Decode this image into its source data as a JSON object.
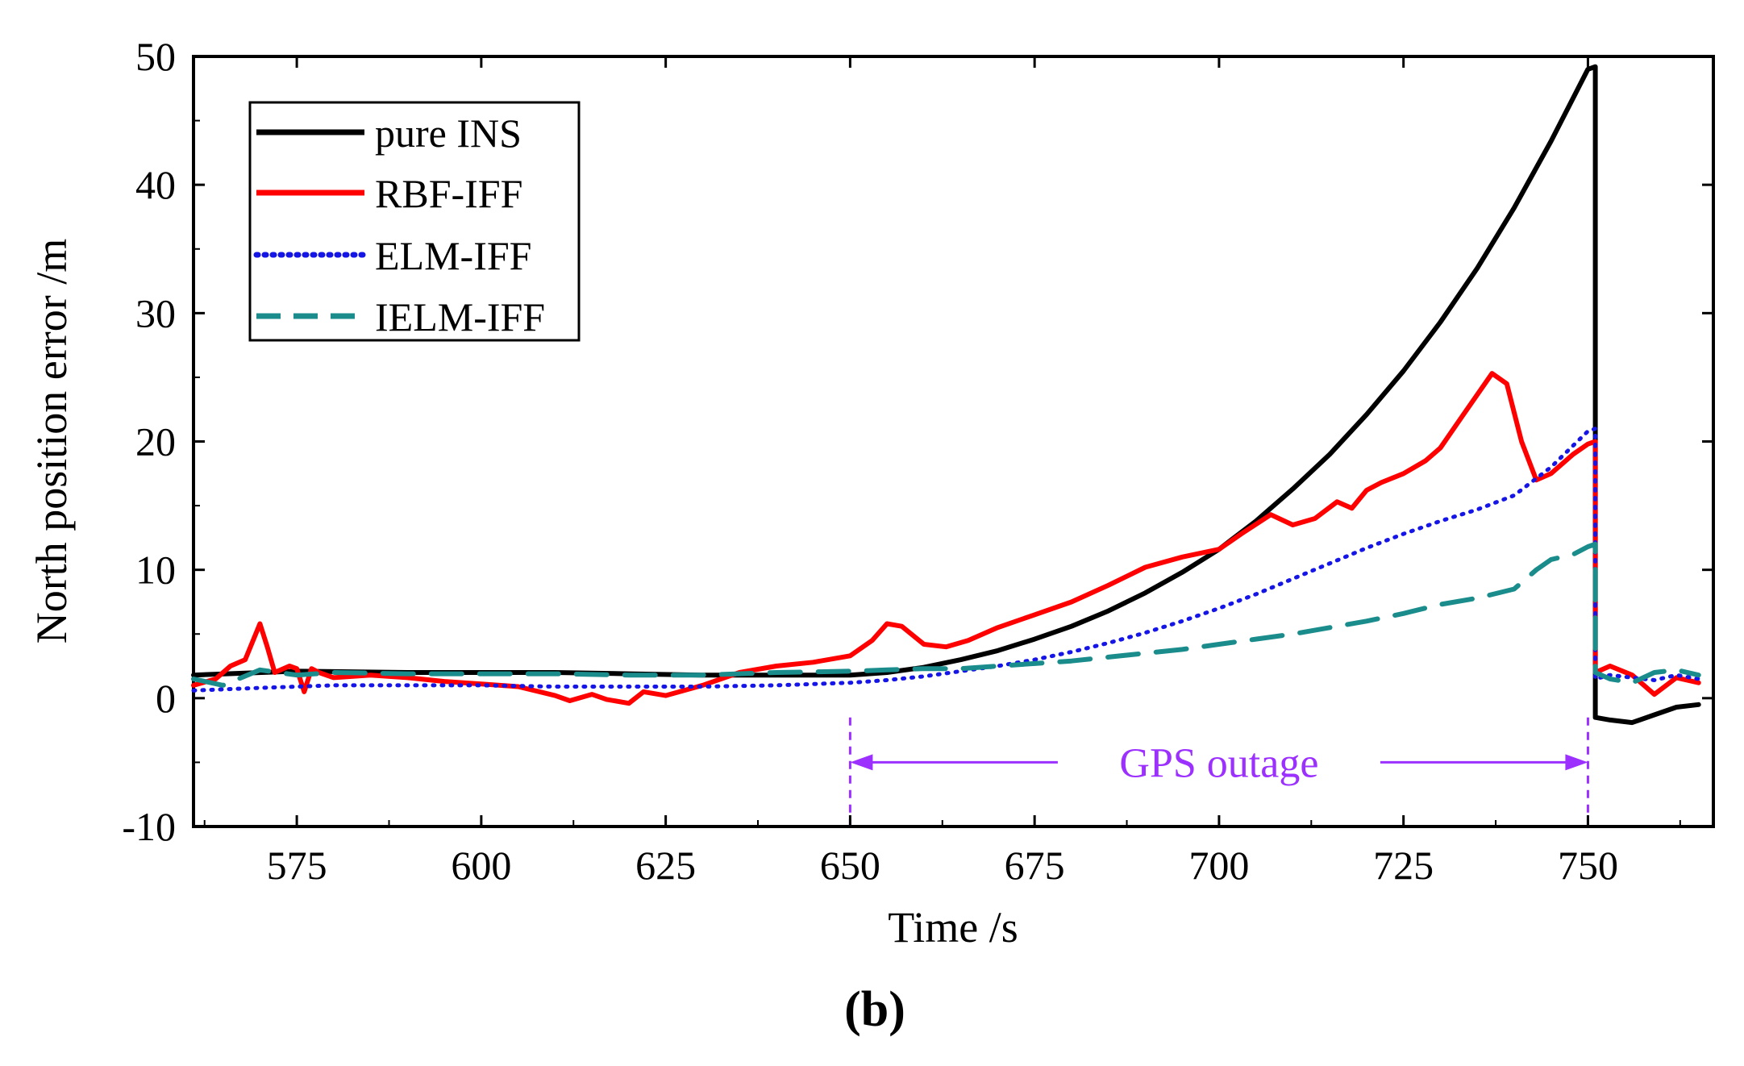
{
  "chart_data": {
    "type": "line",
    "title": "",
    "xlabel": "Time /s",
    "ylabel": "North position error /m",
    "panel_label": "(b)",
    "xlim": [
      561,
      767
    ],
    "ylim": [
      -10,
      50
    ],
    "x_ticks": [
      575,
      600,
      625,
      650,
      675,
      700,
      725,
      750
    ],
    "y_ticks": [
      -10,
      0,
      10,
      20,
      30,
      40,
      50
    ],
    "grid": false,
    "legend_position": "top-left",
    "annotation": {
      "text": "GPS outage",
      "x_start": 650,
      "x_end": 750,
      "y": -5,
      "color": "#9B30FF"
    },
    "series": [
      {
        "name": "pure INS",
        "color": "#000000",
        "style": "solid",
        "x": [
          561,
          575,
          590,
          600,
          610,
          620,
          630,
          640,
          650,
          655,
          660,
          665,
          670,
          675,
          680,
          685,
          690,
          695,
          700,
          705,
          710,
          715,
          720,
          725,
          730,
          735,
          740,
          745,
          750,
          751,
          751,
          753,
          756,
          759,
          762,
          765
        ],
        "y": [
          1.8,
          2.1,
          2.0,
          2.0,
          2.0,
          1.9,
          1.8,
          1.8,
          1.8,
          2.0,
          2.4,
          3.0,
          3.7,
          4.6,
          5.6,
          6.8,
          8.2,
          9.8,
          11.6,
          13.8,
          16.3,
          19.0,
          22.1,
          25.5,
          29.3,
          33.5,
          38.2,
          43.4,
          49.0,
          49.2,
          -1.5,
          -1.7,
          -1.9,
          -1.3,
          -0.7,
          -0.5
        ]
      },
      {
        "name": "RBF-IFF",
        "color": "#FF0000",
        "style": "solid",
        "x": [
          561,
          564,
          566,
          568,
          570,
          571,
          572,
          574,
          575,
          576,
          577,
          578,
          580,
          585,
          590,
          595,
          600,
          605,
          610,
          612,
          615,
          617,
          620,
          622,
          625,
          630,
          635,
          640,
          645,
          650,
          653,
          655,
          657,
          660,
          663,
          666,
          670,
          675,
          680,
          685,
          690,
          695,
          700,
          703,
          707,
          710,
          713,
          716,
          718,
          720,
          722,
          725,
          728,
          730,
          733,
          737,
          739,
          741,
          743,
          745,
          748,
          750,
          751,
          751,
          753,
          756,
          759,
          762,
          765
        ],
        "y": [
          1.0,
          1.5,
          2.5,
          3.0,
          5.8,
          4.0,
          2.0,
          2.5,
          2.3,
          0.5,
          2.3,
          2.0,
          1.6,
          1.8,
          1.6,
          1.3,
          1.1,
          0.9,
          0.2,
          -0.2,
          0.3,
          -0.1,
          -0.4,
          0.5,
          0.2,
          1.0,
          2.0,
          2.5,
          2.8,
          3.3,
          4.5,
          5.8,
          5.6,
          4.2,
          4.0,
          4.5,
          5.5,
          6.5,
          7.5,
          8.8,
          10.2,
          11.0,
          11.6,
          12.8,
          14.3,
          13.5,
          14.0,
          15.3,
          14.8,
          16.2,
          16.8,
          17.5,
          18.5,
          19.5,
          22.0,
          25.3,
          24.5,
          20.0,
          17.0,
          17.5,
          19.0,
          19.8,
          20.0,
          2.0,
          2.5,
          1.8,
          0.3,
          1.6,
          1.2
        ]
      },
      {
        "name": "ELM-IFF",
        "color": "#1515E8",
        "style": "dotted",
        "x": [
          561,
          570,
          580,
          590,
          600,
          610,
          620,
          630,
          640,
          650,
          655,
          660,
          665,
          670,
          675,
          680,
          685,
          690,
          695,
          700,
          705,
          710,
          715,
          720,
          725,
          730,
          735,
          740,
          745,
          750,
          751,
          751,
          753,
          756,
          759,
          762,
          765
        ],
        "y": [
          0.6,
          0.8,
          1.0,
          1.0,
          1.0,
          0.9,
          0.9,
          0.9,
          1.0,
          1.2,
          1.4,
          1.7,
          2.1,
          2.5,
          3.0,
          3.6,
          4.3,
          5.1,
          6.0,
          7.0,
          8.1,
          9.3,
          10.5,
          11.7,
          12.8,
          13.8,
          14.7,
          15.8,
          18.0,
          20.8,
          21.0,
          1.5,
          1.8,
          1.6,
          1.4,
          1.8,
          1.5
        ]
      },
      {
        "name": "IELM-IFF",
        "color": "#1A8C8C",
        "style": "dashed",
        "x": [
          561,
          565,
          570,
          575,
          580,
          590,
          600,
          610,
          620,
          630,
          640,
          650,
          655,
          660,
          665,
          670,
          675,
          680,
          685,
          690,
          695,
          700,
          705,
          710,
          715,
          720,
          725,
          730,
          735,
          740,
          743,
          745,
          748,
          750,
          751,
          751,
          753,
          756,
          759,
          762,
          765
        ],
        "y": [
          1.5,
          1.0,
          2.2,
          1.8,
          2.0,
          1.9,
          1.9,
          1.9,
          1.8,
          1.8,
          2.0,
          2.1,
          2.2,
          2.3,
          2.3,
          2.5,
          2.7,
          2.9,
          3.2,
          3.5,
          3.8,
          4.2,
          4.6,
          5.0,
          5.5,
          6.0,
          6.6,
          7.3,
          7.8,
          8.5,
          10.0,
          10.8,
          11.2,
          11.8,
          12.0,
          2.0,
          1.5,
          1.2,
          2.0,
          2.2,
          1.8
        ]
      }
    ]
  }
}
